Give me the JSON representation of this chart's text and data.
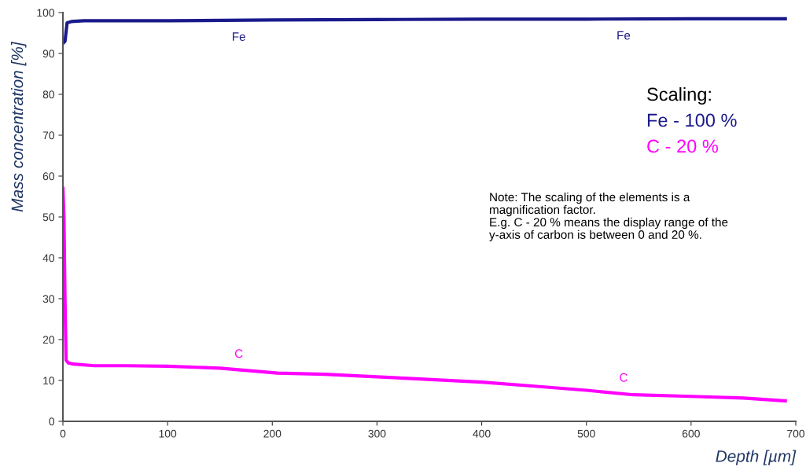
{
  "chart_data": {
    "type": "line",
    "xlabel": "Depth [µm]",
    "ylabel": "Mass concentration [%]",
    "xlim": [
      0,
      700
    ],
    "xticks": [
      0,
      100,
      200,
      300,
      400,
      500,
      600,
      700
    ],
    "ylim": [
      0,
      100
    ],
    "yticks": [
      0,
      10,
      20,
      30,
      40,
      50,
      60,
      70,
      80,
      90,
      100
    ],
    "grid": false,
    "legend": false,
    "marker": "none",
    "line_style": "solid",
    "series": [
      {
        "name": "Fe",
        "color": "#1a1a8c",
        "x": [
          0,
          2,
          4,
          8,
          20,
          40,
          100,
          200,
          300,
          400,
          500,
          600,
          690
        ],
        "values": [
          92.5,
          93,
          97.5,
          97.8,
          98,
          98,
          98,
          98.2,
          98.3,
          98.4,
          98.4,
          98.5,
          98.5
        ]
      },
      {
        "name": "C",
        "color": "#ff00ff",
        "x": [
          0,
          1,
          2,
          3,
          5,
          10,
          30,
          60,
          100,
          150,
          205,
          250,
          330,
          400,
          450,
          500,
          545,
          600,
          650,
          690
        ],
        "values": [
          57,
          50,
          30,
          15,
          14.3,
          14,
          13.6,
          13.6,
          13.5,
          13,
          11.8,
          11.5,
          10.5,
          9.6,
          8.6,
          7.6,
          6.5,
          6.1,
          5.7,
          5
        ]
      }
    ],
    "annotations": [
      "Scaling:",
      "Fe - 100 %",
      "C - 20 %",
      "Note: The scaling of the elements is a magnification factor.\nE.g. C - 20 % means the display range of the y-axis of carbon is between 0 and 20 %."
    ]
  }
}
